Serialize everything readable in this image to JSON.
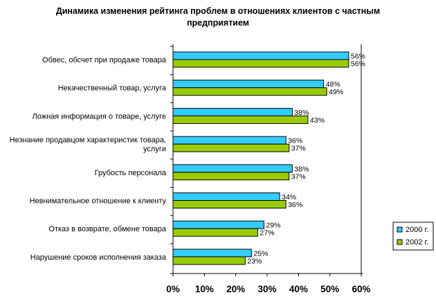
{
  "chart_data": {
    "type": "bar",
    "orientation": "horizontal",
    "title": [
      "Динамика изменения рейтинга проблем в отношениях клиентов с частным",
      "предприятием"
    ],
    "categories": [
      [
        "Обвес, обсчет при продаже товара"
      ],
      [
        "Некачественный товар, услуга"
      ],
      [
        "Ложная информация о товаре, услуге"
      ],
      [
        "Незнание продавцом характеристик товара,",
        "услуги"
      ],
      [
        "Грубость персонала"
      ],
      [
        "Невнимательное отношение к клиенту"
      ],
      [
        "Отказ в возврате, обмене товара"
      ],
      [
        "Нарушение сроков исполнения заказа"
      ]
    ],
    "series": [
      {
        "name": "2000 г.",
        "color": "#33CCFF",
        "values": [
          56,
          48,
          38,
          36,
          38,
          34,
          29,
          25
        ],
        "labels": [
          "56%",
          "48%",
          "38%",
          "36%",
          "38%",
          "34%",
          "29%",
          "25%"
        ]
      },
      {
        "name": "2002 г.",
        "color": "#99CC00",
        "values": [
          56,
          49,
          43,
          37,
          37,
          36,
          27,
          23
        ],
        "labels": [
          "56%",
          "49%",
          "43%",
          "37%",
          "37%",
          "36%",
          "27%",
          "23%"
        ]
      }
    ],
    "xlim": [
      0,
      60
    ],
    "xticks": [
      0,
      10,
      20,
      30,
      40,
      50,
      60
    ],
    "xtick_labels": [
      "0%",
      "10%",
      "20%",
      "30%",
      "40%",
      "50%",
      "60%"
    ],
    "grid": false,
    "legend_position": "right"
  }
}
